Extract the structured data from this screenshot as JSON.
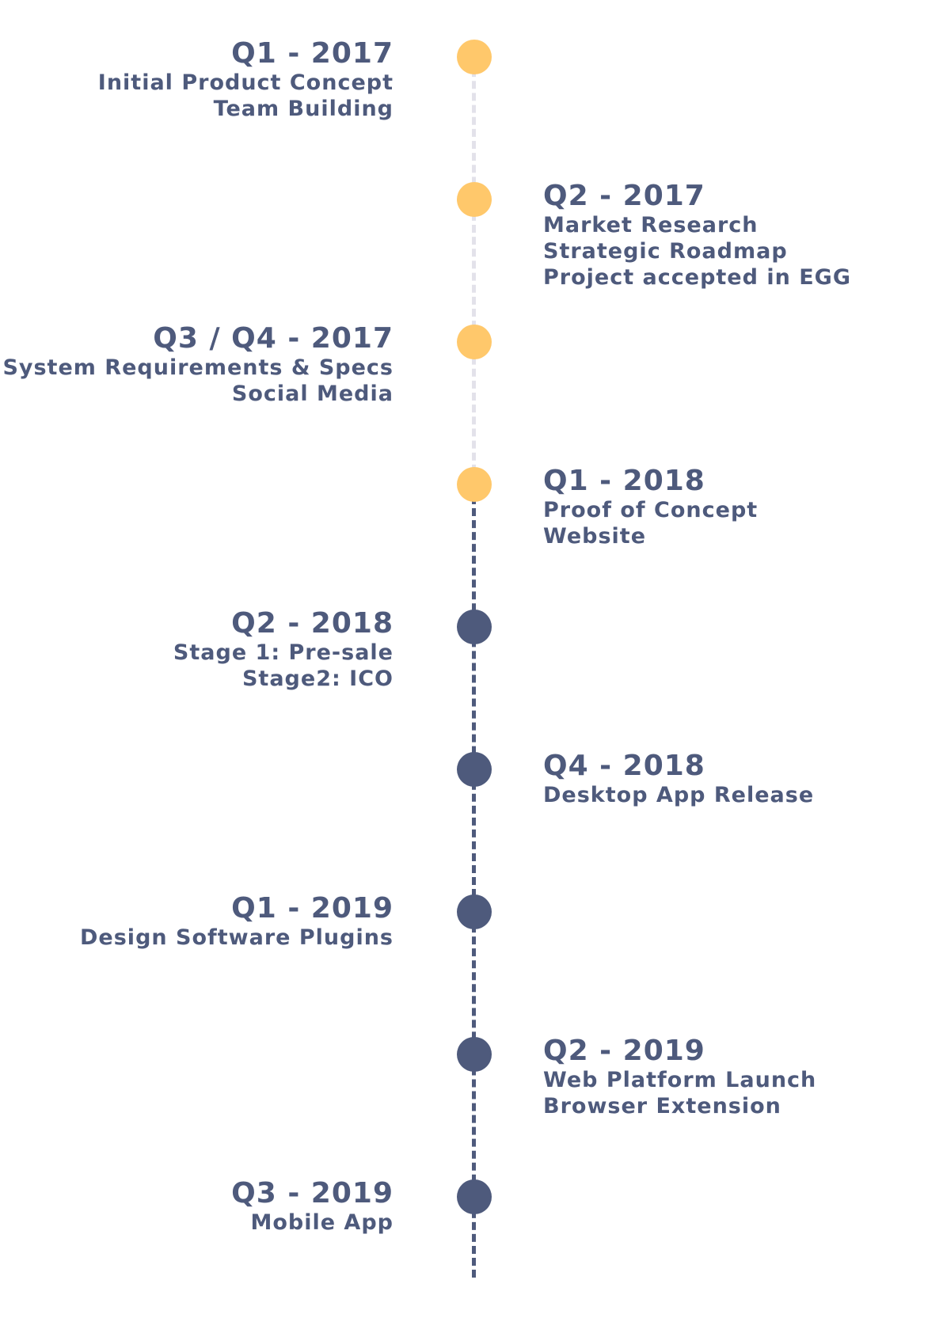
{
  "colors": {
    "completed": "#ffc86b",
    "upcoming": "#4e5a7c",
    "line_completed": "#e3e2ea",
    "line_upcoming": "#4e5a7c",
    "text": "#4e5a7c"
  },
  "milestones": [
    {
      "period": "Q1 - 2017",
      "items": [
        "Initial Product Concept",
        "Team Building"
      ],
      "side": "left",
      "status": "completed"
    },
    {
      "period": "Q2 - 2017",
      "items": [
        "Market Research",
        "Strategic Roadmap",
        "Project accepted in EGG"
      ],
      "side": "right",
      "status": "completed"
    },
    {
      "period": "Q3 / Q4 - 2017",
      "items": [
        "System Requirements & Specs",
        "Social Media"
      ],
      "side": "left",
      "status": "completed"
    },
    {
      "period": "Q1 - 2018",
      "items": [
        "Proof of Concept",
        "Website"
      ],
      "side": "right",
      "status": "completed"
    },
    {
      "period": "Q2 - 2018",
      "items": [
        "Stage 1: Pre-sale",
        "Stage2: ICO"
      ],
      "side": "left",
      "status": "upcoming"
    },
    {
      "period": "Q4 - 2018",
      "items": [
        "Desktop App Release"
      ],
      "side": "right",
      "status": "upcoming"
    },
    {
      "period": "Q1 - 2019",
      "items": [
        "Design Software Plugins"
      ],
      "side": "left",
      "status": "upcoming"
    },
    {
      "period": "Q2 - 2019",
      "items": [
        "Web Platform Launch",
        "Browser Extension"
      ],
      "side": "right",
      "status": "upcoming"
    },
    {
      "period": "Q3 - 2019",
      "items": [
        "Mobile App"
      ],
      "side": "left",
      "status": "upcoming"
    }
  ]
}
